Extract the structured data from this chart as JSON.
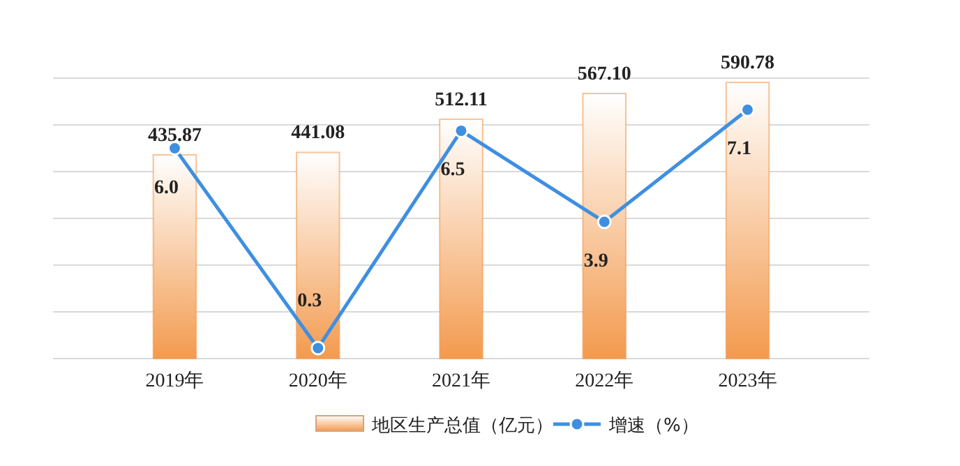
{
  "chart_data": {
    "type": "bar",
    "categories": [
      "2019年",
      "2020年",
      "2021年",
      "2022年",
      "2023年"
    ],
    "series": [
      {
        "name": "地区生产总值（亿元）",
        "color": "#f39a4e",
        "values": [
          435.87,
          441.08,
          512.11,
          567.1,
          590.78
        ],
        "value_labels": [
          "435.87",
          "441.08",
          "512.11",
          "567.10",
          "590.78"
        ]
      },
      {
        "name": "增速（%）",
        "type": "line",
        "axis": "y2",
        "color": "#3f8fe0",
        "values": [
          6.0,
          0.3,
          6.5,
          3.9,
          7.1
        ],
        "value_labels": [
          "6.0",
          "0.3",
          "6.5",
          "3.9",
          "7.1"
        ]
      }
    ],
    "ylim": [
      0,
      600
    ],
    "yticks": [
      {
        "value": 0,
        "label": null
      },
      {
        "value": 100,
        "label": null
      },
      {
        "value": 200,
        "label": null
      },
      {
        "value": 300,
        "label": null
      },
      {
        "value": 400,
        "label": null
      },
      {
        "value": 500,
        "label": null
      },
      {
        "value": 600,
        "label": null
      }
    ],
    "y2lim": [
      0,
      8
    ],
    "tick_labels": "x",
    "grid": "y",
    "legend": "bottom",
    "marker": "circle",
    "line_style": "solid"
  }
}
